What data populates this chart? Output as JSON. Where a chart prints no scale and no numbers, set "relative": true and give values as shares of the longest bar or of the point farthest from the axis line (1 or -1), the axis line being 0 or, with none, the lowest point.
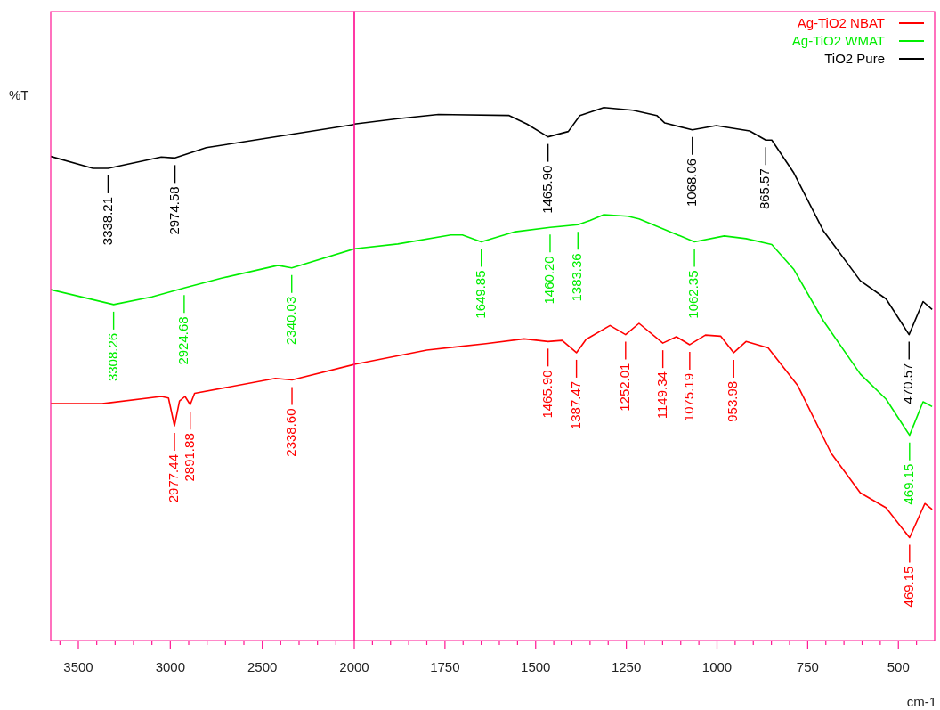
{
  "chart_data": [
    {
      "type": "line",
      "relative": true,
      "ylabel": "%T",
      "xlim": [
        3650,
        2000
      ],
      "xticks": [
        {
          "value": 3600,
          "label": null
        },
        3500,
        {
          "value": 3400,
          "label": null
        },
        {
          "value": 3300,
          "label": null
        },
        {
          "value": 3200,
          "label": null
        },
        {
          "value": 3100,
          "label": null
        },
        3000,
        {
          "value": 2900,
          "label": null
        },
        {
          "value": 2800,
          "label": null
        },
        {
          "value": 2700,
          "label": null
        },
        {
          "value": 2600,
          "label": null
        },
        2500,
        {
          "value": 2400,
          "label": null
        },
        {
          "value": 2300,
          "label": null
        },
        {
          "value": 2200,
          "label": null
        },
        {
          "value": 2100,
          "label": null
        }
      ],
      "series": [
        {
          "color": "#ff0000",
          "x": [
            3650,
            3371,
            3049,
            3010,
            2977.44,
            2950,
            2920,
            2891.88,
            2868,
            2429,
            2338.6,
            2000
          ],
          "values": [
            0.459,
            0.459,
            0.473,
            0.47,
            0.416,
            0.464,
            0.473,
            0.457,
            0.479,
            0.508,
            0.505,
            0.535
          ]
        },
        {
          "color": "#00ee00",
          "x": [
            3650,
            3308.26,
            3100,
            2924.68,
            2722,
            2415,
            2340.03,
            2000
          ],
          "values": [
            0.68,
            0.651,
            0.666,
            0.683,
            0.702,
            0.727,
            0.722,
            0.759
          ]
        },
        {
          "color": "#000000",
          "x": [
            3650,
            3420,
            3338.21,
            3049,
            2974.58,
            2805,
            2395,
            2000
          ],
          "values": [
            0.938,
            0.915,
            0.915,
            0.937,
            0.935,
            0.955,
            0.978,
            1
          ]
        }
      ],
      "annotations": [
        {
          "text": "3338.21",
          "x": 3338.21,
          "y": 0.915
        },
        {
          "text": "2974.58",
          "x": 2974.58,
          "y": 0.935
        },
        {
          "text": "3308.26",
          "x": 3308.26,
          "y": 0.651
        },
        {
          "text": "2924.68",
          "x": 2924.68,
          "y": 0.683
        },
        {
          "text": "2340.03",
          "x": 2340.03,
          "y": 0.722
        },
        {
          "text": "2977.44",
          "x": 2977.44,
          "y": 0.416
        },
        {
          "text": "2891.88",
          "x": 2891.88,
          "y": 0.457
        },
        {
          "text": "2338.60",
          "x": 2338.6,
          "y": 0.505
        }
      ]
    },
    {
      "type": "line",
      "relative": true,
      "xlabel": "cm-1",
      "legend": "top right",
      "xlim": [
        2000,
        400
      ],
      "xticks": [
        2000,
        {
          "value": 1950,
          "label": null
        },
        {
          "value": 1900,
          "label": null
        },
        {
          "value": 1850,
          "label": null
        },
        {
          "value": 1800,
          "label": null
        },
        1750,
        {
          "value": 1700,
          "label": null
        },
        {
          "value": 1650,
          "label": null
        },
        {
          "value": 1600,
          "label": null
        },
        {
          "value": 1550,
          "label": null
        },
        1500,
        {
          "value": 1450,
          "label": null
        },
        {
          "value": 1400,
          "label": null
        },
        {
          "value": 1350,
          "label": null
        },
        {
          "value": 1300,
          "label": null
        },
        1250,
        {
          "value": 1200,
          "label": null
        },
        {
          "value": 1150,
          "label": null
        },
        {
          "value": 1100,
          "label": null
        },
        {
          "value": 1050,
          "label": null
        },
        1000,
        {
          "value": 950,
          "label": null
        },
        {
          "value": 900,
          "label": null
        },
        {
          "value": 850,
          "label": null
        },
        {
          "value": 800,
          "label": null
        },
        750,
        {
          "value": 700,
          "label": null
        },
        {
          "value": 650,
          "label": null
        },
        {
          "value": 600,
          "label": null
        },
        {
          "value": 550,
          "label": null
        },
        500,
        {
          "value": 450,
          "label": null
        }
      ],
      "series": [
        {
          "name": "Ag-TiO2 NBAT",
          "color": "#ff0000",
          "x": [
            2000,
            1800,
            1637,
            1532,
            1465.9,
            1427,
            1387.47,
            1361,
            1295,
            1252.01,
            1215,
            1149.34,
            1112,
            1075.19,
            1032,
            990,
            953.98,
            920,
            859,
            778,
            685,
            605,
            534,
            469.15,
            427,
            407
          ],
          "values": [
            0.518,
            0.545,
            0.557,
            0.566,
            0.561,
            0.563,
            0.54,
            0.565,
            0.591,
            0.574,
            0.595,
            0.558,
            0.57,
            0.555,
            0.573,
            0.571,
            0.54,
            0.561,
            0.549,
            0.479,
            0.351,
            0.277,
            0.249,
            0.193,
            0.257,
            0.246
          ]
        },
        {
          "name": "Ag-TiO2 WMAT",
          "color": "#00ee00",
          "x": [
            2000,
            1880,
            1734,
            1702,
            1649.85,
            1556,
            1460.2,
            1383.36,
            1350,
            1312,
            1246,
            1215,
            1062.35,
            980,
            920,
            849,
            788,
            707,
            605,
            534,
            469.15,
            432,
            407
          ],
          "values": [
            0.735,
            0.744,
            0.761,
            0.761,
            0.748,
            0.767,
            0.775,
            0.78,
            0.788,
            0.799,
            0.796,
            0.791,
            0.748,
            0.759,
            0.754,
            0.743,
            0.696,
            0.6,
            0.5,
            0.453,
            0.385,
            0.448,
            0.439
          ]
        },
        {
          "name": "TiO2 Pure",
          "color": "#000000",
          "x": [
            2000,
            1880,
            1768,
            1573,
            1524,
            1465.9,
            1410,
            1378,
            1312,
            1232,
            1166,
            1144,
            1068.06,
            1002,
            910,
            865.57,
            849,
            788,
            707,
            605,
            534,
            470.57,
            432,
            407
          ],
          "values": [
            0.969,
            0.979,
            0.987,
            0.985,
            0.969,
            0.945,
            0.955,
            0.985,
            1,
            0.995,
            0.985,
            0.971,
            0.958,
            0.966,
            0.956,
            0.939,
            0.939,
            0.877,
            0.769,
            0.675,
            0.641,
            0.574,
            0.636,
            0.621
          ]
        }
      ],
      "annotations": [
        {
          "text": "1465.90",
          "x": 1465.9,
          "y": 0.945
        },
        {
          "text": "1068.06",
          "x": 1068.06,
          "y": 0.958
        },
        {
          "text": "865.57",
          "x": 865.57,
          "y": 0.939
        },
        {
          "text": "470.57",
          "x": 470.57,
          "y": 0.574
        },
        {
          "text": "1649.85",
          "x": 1649.85,
          "y": 0.748
        },
        {
          "text": "1460.20",
          "x": 1460.2,
          "y": 0.775
        },
        {
          "text": "1383.36",
          "x": 1383.36,
          "y": 0.78
        },
        {
          "text": "1062.35",
          "x": 1062.35,
          "y": 0.748
        },
        {
          "text": "469.15",
          "x": 469.15,
          "y": 0.385
        },
        {
          "text": "1465.90",
          "x": 1465.9,
          "y": 0.561
        },
        {
          "text": "1387.47",
          "x": 1387.47,
          "y": 0.54
        },
        {
          "text": "1252.01",
          "x": 1252.01,
          "y": 0.574
        },
        {
          "text": "1149.34",
          "x": 1149.34,
          "y": 0.558
        },
        {
          "text": "1075.19",
          "x": 1075.19,
          "y": 0.555
        },
        {
          "text": "953.98",
          "x": 953.98,
          "y": 0.54
        },
        {
          "text": "469.15",
          "x": 469.15,
          "y": 0.193
        }
      ]
    }
  ]
}
